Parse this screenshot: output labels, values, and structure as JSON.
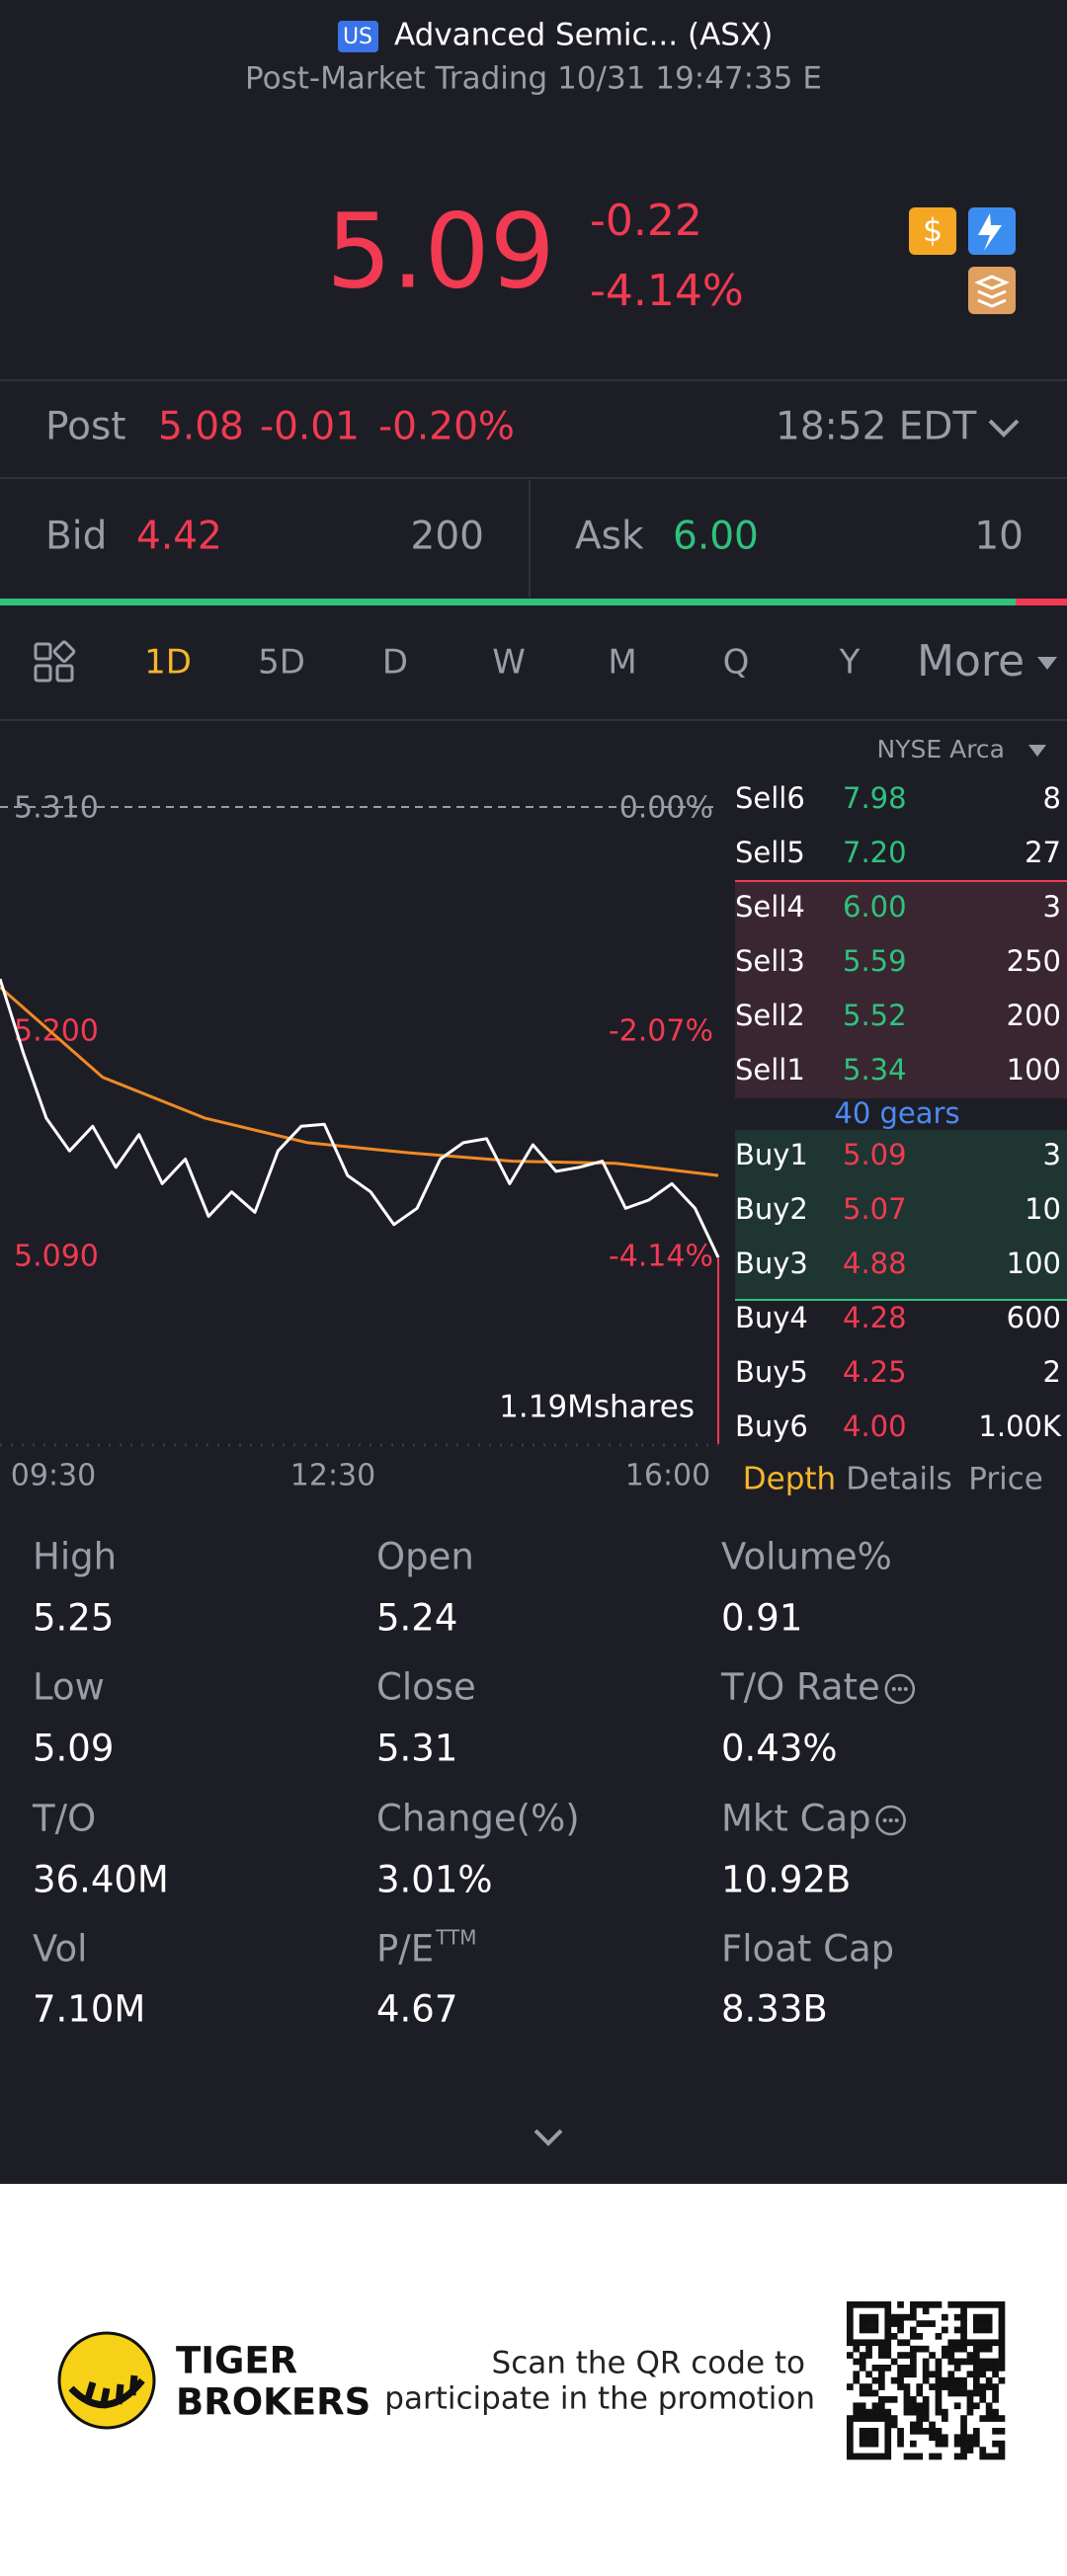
{
  "header": {
    "badge": "US",
    "title": "Advanced Semic... (ASX)",
    "subtitle": "Post-Market Trading 10/31 19:47:35 E"
  },
  "quote": {
    "price": "5.09",
    "change": "-0.22",
    "change_pct": "-4.14%"
  },
  "post": {
    "label": "Post",
    "price": "5.08",
    "change": "-0.01",
    "change_pct": "-0.20%",
    "time": "18:52 EDT"
  },
  "bid_ask": {
    "bid_label": "Bid",
    "bid": "4.42",
    "bid_size": "200",
    "ask_label": "Ask",
    "ask": "6.00",
    "ask_size": "10"
  },
  "tabs": [
    "1D",
    "5D",
    "D",
    "W",
    "M",
    "Q",
    "Y",
    "More"
  ],
  "intraday": {
    "levels": [
      {
        "value": 5.31,
        "label": "5.310"
      },
      {
        "value": 5.2,
        "label": "5.200"
      },
      {
        "value": 5.09,
        "label": "5.090"
      }
    ],
    "level_pcts": [
      "0.00%",
      "-2.07%",
      "-4.14%"
    ],
    "x_labels": [
      "09:30",
      "12:30",
      "16:00"
    ],
    "volume": "1.19Mshares",
    "price": [
      5.226,
      5.19,
      5.158,
      5.142,
      5.154,
      5.134,
      5.15,
      5.126,
      5.138,
      5.11,
      5.122,
      5.112,
      5.142,
      5.154,
      5.155,
      5.13,
      5.122,
      5.106,
      5.114,
      5.138,
      5.146,
      5.148,
      5.126,
      5.145,
      5.132,
      5.134,
      5.137,
      5.114,
      5.118,
      5.126,
      5.114,
      5.09
    ],
    "average": [
      5.222,
      5.178,
      5.158,
      5.146,
      5.141,
      5.137,
      5.136,
      5.13
    ]
  },
  "order_book": {
    "exchange": "NYSE Arca",
    "sells": [
      {
        "label": "Sell6",
        "price": "7.98",
        "qty": "8"
      },
      {
        "label": "Sell5",
        "price": "7.20",
        "qty": "27"
      },
      {
        "label": "Sell4",
        "price": "6.00",
        "qty": "3"
      },
      {
        "label": "Sell3",
        "price": "5.59",
        "qty": "250"
      },
      {
        "label": "Sell2",
        "price": "5.52",
        "qty": "200"
      },
      {
        "label": "Sell1",
        "price": "5.34",
        "qty": "100"
      }
    ],
    "gears": "40 gears",
    "buys": [
      {
        "label": "Buy1",
        "price": "5.09",
        "qty": "3"
      },
      {
        "label": "Buy2",
        "price": "5.07",
        "qty": "10"
      },
      {
        "label": "Buy3",
        "price": "4.88",
        "qty": "100"
      },
      {
        "label": "Buy4",
        "price": "4.28",
        "qty": "600"
      },
      {
        "label": "Buy5",
        "price": "4.25",
        "qty": "2"
      },
      {
        "label": "Buy6",
        "price": "4.00",
        "qty": "1.00K"
      }
    ],
    "tabs": [
      "Depth",
      "Details",
      "Price"
    ]
  },
  "stats": [
    {
      "label": "High",
      "value": "5.25"
    },
    {
      "label": "Open",
      "value": "5.24"
    },
    {
      "label": "Volume%",
      "value": "0.91"
    },
    {
      "label": "Low",
      "value": "5.09"
    },
    {
      "label": "Close",
      "value": "5.31"
    },
    {
      "label": "T/O Rate",
      "value": "0.43%"
    },
    {
      "label": "T/O",
      "value": "36.40M"
    },
    {
      "label": "Change(%)",
      "value": "3.01%"
    },
    {
      "label": "Mkt Cap",
      "value": "10.92B"
    },
    {
      "label": "Vol",
      "value": "7.10M"
    },
    {
      "label": "P/E",
      "sup": "TTM",
      "value": "4.67"
    },
    {
      "label": "Float Cap",
      "value": "8.33B"
    }
  ],
  "footer": {
    "brand_line1": "TIGER",
    "brand_line2": "BROKERS",
    "promo_line1": "Scan the QR code to",
    "promo_line2": "participate in the promotion"
  }
}
